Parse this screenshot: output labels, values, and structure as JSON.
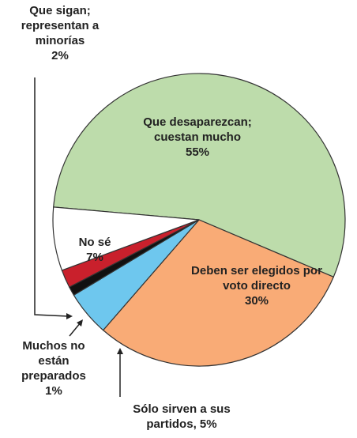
{
  "chart_data": {
    "type": "pie",
    "categories": [
      "Que desaparezcan; cuestan mucho",
      "Deben ser elegidos por voto directo",
      "Sólo sirven a sus partidos,",
      "Muchos no están preparados",
      "Que sigan; representan a minorías",
      "No sé"
    ],
    "values": [
      55,
      30,
      5,
      1,
      2,
      7
    ],
    "value_labels": [
      "55%",
      "30%",
      "5%",
      "1%",
      "2%",
      "7%"
    ],
    "colors": [
      "#bddcab",
      "#f9ab76",
      "#6ec7ee",
      "#111111",
      "#c9202c",
      "#ffffff"
    ]
  }
}
